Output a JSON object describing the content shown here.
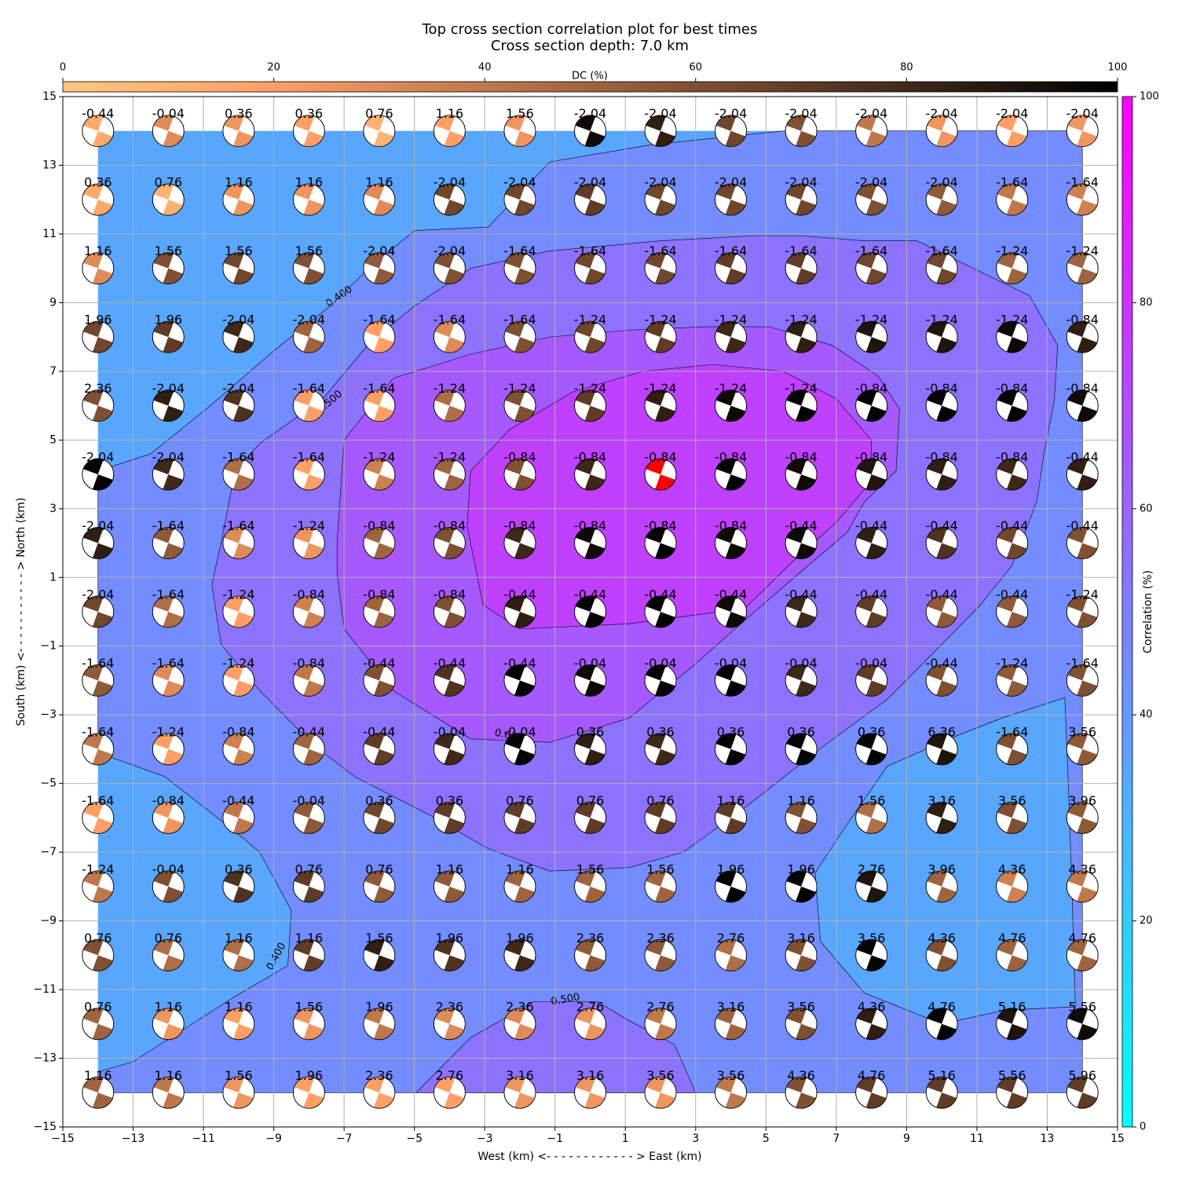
{
  "chart_data": {
    "type": "beachball_grid",
    "title": "Top cross section correlation plot for best times",
    "subtitle": "Cross section depth: 7.0 km",
    "xlabel": "West (km) <- - - - - - - - - - - - > East (km)",
    "ylabel": "South (km) <- - - - - - - - - - - > North (km)",
    "xlim": [
      -15,
      15
    ],
    "ylim": [
      -15,
      15
    ],
    "xticks": [
      {
        "value": -15,
        "label": "−15"
      },
      {
        "value": -13,
        "label": "−13"
      },
      {
        "value": -11,
        "label": "−11"
      },
      {
        "value": -9,
        "label": "−9"
      },
      {
        "value": -7,
        "label": "−7"
      },
      {
        "value": -5,
        "label": "−5"
      },
      {
        "value": -3,
        "label": "−3"
      },
      {
        "value": -1,
        "label": "−1"
      },
      1,
      3,
      5,
      7,
      9,
      11,
      13,
      15
    ],
    "yticks": [
      {
        "value": -15,
        "label": "−15"
      },
      {
        "value": -13,
        "label": "−13"
      },
      {
        "value": -11,
        "label": "−11"
      },
      {
        "value": -9,
        "label": "−9"
      },
      {
        "value": -7,
        "label": "−7"
      },
      {
        "value": -5,
        "label": "−5"
      },
      {
        "value": -3,
        "label": "−3"
      },
      {
        "value": -1,
        "label": "−1"
      },
      1,
      3,
      5,
      7,
      9,
      11,
      13,
      15
    ],
    "grid": true,
    "x": [
      -14,
      -12,
      -10,
      -8,
      -6,
      -4,
      -2,
      0,
      2,
      4,
      6,
      8,
      10,
      12,
      14
    ],
    "y": [
      14,
      12,
      10,
      8,
      6,
      4,
      2,
      0,
      -2,
      -4,
      -6,
      -8,
      -10,
      -12,
      -14
    ],
    "time_labels": [
      [
        -0.44,
        -0.04,
        0.36,
        0.36,
        0.76,
        1.16,
        1.56,
        -2.04,
        -2.04,
        -2.04,
        -2.04,
        -2.04,
        -2.04,
        -2.04,
        -2.04
      ],
      [
        0.36,
        0.76,
        1.16,
        1.16,
        1.16,
        -2.04,
        -2.04,
        -2.04,
        -2.04,
        -2.04,
        -2.04,
        -2.04,
        -2.04,
        -1.64,
        -1.64
      ],
      [
        1.16,
        1.56,
        1.56,
        1.56,
        -2.04,
        -2.04,
        -1.64,
        -1.64,
        -1.64,
        -1.64,
        -1.64,
        -1.64,
        -1.64,
        -1.24,
        -1.24
      ],
      [
        1.96,
        1.96,
        -2.04,
        -2.04,
        -1.64,
        -1.64,
        -1.64,
        -1.24,
        -1.24,
        -1.24,
        -1.24,
        -1.24,
        -1.24,
        -1.24,
        -0.84
      ],
      [
        2.36,
        -2.04,
        -2.04,
        -1.64,
        -1.64,
        -1.24,
        -1.24,
        -1.24,
        -1.24,
        -1.24,
        -1.24,
        -0.84,
        -0.84,
        -0.84,
        -0.84
      ],
      [
        -2.04,
        -2.04,
        -1.64,
        -1.64,
        -1.24,
        -1.24,
        -0.84,
        -0.84,
        -0.84,
        -0.84,
        -0.84,
        -0.84,
        -0.84,
        -0.84,
        -0.44
      ],
      [
        -2.04,
        -1.64,
        -1.64,
        -1.24,
        -0.84,
        -0.84,
        -0.84,
        -0.84,
        -0.84,
        -0.84,
        -0.44,
        -0.44,
        -0.44,
        -0.44,
        -0.44
      ],
      [
        -2.04,
        -1.64,
        -1.24,
        -0.84,
        -0.84,
        -0.84,
        -0.44,
        -0.44,
        -0.44,
        -0.44,
        -0.44,
        -0.44,
        -0.44,
        -0.44,
        -1.24
      ],
      [
        -1.64,
        -1.64,
        -1.24,
        -0.84,
        -0.44,
        -0.44,
        -0.44,
        -0.04,
        -0.04,
        -0.04,
        -0.04,
        -0.04,
        -0.44,
        -1.24,
        -1.64
      ],
      [
        -1.64,
        -1.24,
        -0.84,
        -0.44,
        -0.44,
        -0.04,
        -0.04,
        0.36,
        0.36,
        0.36,
        0.36,
        0.36,
        6.36,
        -1.64,
        3.56
      ],
      [
        -1.64,
        -0.84,
        -0.44,
        -0.04,
        0.36,
        0.36,
        0.76,
        0.76,
        0.76,
        1.16,
        1.16,
        1.56,
        3.16,
        3.56,
        3.96
      ],
      [
        -1.24,
        -0.04,
        0.36,
        0.76,
        0.76,
        1.16,
        1.16,
        1.56,
        1.56,
        1.96,
        1.96,
        2.76,
        3.96,
        4.36,
        4.36
      ],
      [
        0.76,
        0.76,
        1.16,
        1.16,
        1.56,
        1.96,
        1.96,
        2.36,
        2.36,
        2.76,
        3.16,
        3.56,
        4.36,
        4.76,
        4.76
      ],
      [
        0.76,
        1.16,
        1.16,
        1.56,
        1.96,
        2.36,
        2.36,
        2.76,
        2.76,
        3.16,
        3.56,
        4.36,
        4.76,
        5.16,
        5.56
      ],
      [
        1.16,
        1.16,
        1.56,
        1.96,
        2.36,
        2.76,
        3.16,
        3.16,
        3.56,
        3.56,
        4.36,
        4.76,
        5.16,
        5.56,
        5.96
      ]
    ],
    "dc": [
      [
        15,
        30,
        25,
        20,
        10,
        20,
        25,
        95,
        85,
        65,
        60,
        40,
        25,
        20,
        25
      ],
      [
        15,
        10,
        25,
        25,
        30,
        65,
        65,
        70,
        65,
        65,
        65,
        60,
        55,
        40,
        35
      ],
      [
        30,
        60,
        65,
        60,
        55,
        60,
        60,
        65,
        65,
        70,
        70,
        65,
        65,
        50,
        50
      ],
      [
        65,
        70,
        80,
        50,
        20,
        30,
        60,
        65,
        70,
        80,
        85,
        90,
        90,
        95,
        85
      ],
      [
        60,
        85,
        75,
        20,
        20,
        45,
        60,
        70,
        85,
        95,
        98,
        98,
        98,
        98,
        95
      ],
      [
        98,
        80,
        45,
        20,
        35,
        50,
        60,
        80,
        null,
        98,
        95,
        90,
        85,
        80,
        85
      ],
      [
        85,
        55,
        30,
        25,
        50,
        60,
        80,
        95,
        98,
        95,
        95,
        85,
        75,
        65,
        60
      ],
      [
        65,
        45,
        20,
        35,
        50,
        60,
        85,
        98,
        98,
        95,
        80,
        70,
        55,
        55,
        60
      ],
      [
        55,
        30,
        20,
        40,
        60,
        75,
        98,
        95,
        98,
        98,
        80,
        70,
        60,
        55,
        60
      ],
      [
        40,
        20,
        35,
        50,
        70,
        80,
        98,
        85,
        80,
        98,
        98,
        98,
        90,
        60,
        55
      ],
      [
        20,
        25,
        40,
        55,
        65,
        70,
        70,
        70,
        70,
        70,
        60,
        45,
        85,
        60,
        55
      ],
      [
        40,
        60,
        75,
        70,
        55,
        55,
        50,
        50,
        50,
        98,
        98,
        90,
        50,
        35,
        40
      ],
      [
        60,
        45,
        45,
        70,
        85,
        75,
        80,
        55,
        55,
        45,
        60,
        98,
        60,
        50,
        50
      ],
      [
        50,
        25,
        20,
        25,
        40,
        30,
        30,
        25,
        40,
        50,
        60,
        85,
        98,
        90,
        95
      ],
      [
        50,
        40,
        25,
        20,
        20,
        20,
        25,
        25,
        25,
        40,
        60,
        70,
        70,
        70,
        70
      ]
    ],
    "highlight": {
      "x": 2,
      "y": 4,
      "color": "#ff0000"
    },
    "dc_colorbar": {
      "label": "DC (%)",
      "lim": [
        0,
        100
      ],
      "ticks": [
        0,
        20,
        40,
        60,
        80,
        100
      ],
      "colormap": "copper_r"
    },
    "corr_colorbar": {
      "label": "Correlation (%)",
      "lim": [
        0,
        100
      ],
      "ticks": [
        0,
        20,
        40,
        60,
        80,
        100
      ],
      "colormap": "cool"
    },
    "contours": [
      {
        "level": 0.4,
        "side": "above",
        "labels": [
          "0.400",
          "0.400"
        ],
        "x": [
          -14,
          -12.5,
          -10.76,
          -9,
          -7.4,
          -6.4,
          -5,
          -2.9,
          -1.15,
          1.75,
          5.5,
          14,
          14,
          -14,
          -14,
          -13,
          -10.1,
          -8.6,
          -8.5,
          -9.4,
          -10.1,
          -12.1,
          -14
        ],
        "y": [
          4.1,
          4.6,
          6.04,
          7.6,
          8.9,
          9.9,
          11.1,
          11.2,
          13.1,
          13.6,
          14,
          14,
          -14,
          -14,
          -13.4,
          -13.1,
          -11.2,
          -10.3,
          -8.7,
          -7,
          -6.4,
          -4.8,
          -4.1
        ]
      },
      {
        "level": 0.4,
        "side": "below",
        "x": [
          13.5,
          11.7,
          10.2,
          8.45,
          7.3,
          6.4,
          6.55,
          7.8,
          10,
          11.8,
          13.8,
          13.7,
          13.6
        ],
        "y": [
          -2.5,
          -3.1,
          -3.7,
          -4.5,
          -6.2,
          -7.6,
          -9.6,
          -11.1,
          -12,
          -11.6,
          -11.5,
          -8,
          -5
        ]
      },
      {
        "level": 0.5,
        "side": "above",
        "labels": [
          "0.500"
        ],
        "x": [
          -10.76,
          -10.5,
          -10.1,
          -9.4,
          -7.6,
          -6.3,
          -5,
          -3.4,
          -1.2,
          2,
          4.65,
          6,
          7.8,
          9.3,
          10.9,
          12.5,
          13.3,
          13.2,
          12.9,
          12.7,
          12,
          11.1,
          10,
          8.45,
          6.65,
          4.4,
          2.65,
          1.1,
          -1.15,
          -2.9,
          -4.5,
          -6.7,
          -7.85,
          -9.4,
          -10.5
        ],
        "y": [
          0.8,
          2,
          4.1,
          4.9,
          6.2,
          7.8,
          8.9,
          10,
          10.5,
          10.8,
          10.95,
          10.95,
          10.8,
          10.8,
          10,
          9.2,
          7.75,
          6.15,
          4.55,
          3.2,
          1.35,
          0.2,
          -0.95,
          -2.55,
          -3.9,
          -5.7,
          -7,
          -7.45,
          -7.55,
          -6.9,
          -5.95,
          -4.8,
          -3.9,
          -2.3,
          -0.95
        ]
      },
      {
        "level": 0.5,
        "side": "above",
        "labels": [
          "0.500"
        ],
        "x": [
          -4.95,
          -3.4,
          -1.6,
          0.2,
          1.1,
          2.4,
          3
        ],
        "y": [
          -14,
          -12.4,
          -11.35,
          -11.35,
          -11.9,
          -12.6,
          -14
        ]
      },
      {
        "level": 0.6,
        "side": "above",
        "labels": [
          "0.600"
        ],
        "x": [
          -7.2,
          -7,
          -5.6,
          -3.4,
          -1.15,
          1.1,
          3.3,
          5.1,
          6.9,
          8.2,
          8.8,
          8.7,
          7.8,
          7.3,
          6.2,
          4.4,
          2.9,
          1.1,
          -1.15,
          -3.4,
          -5.6,
          -7,
          -7.2
        ],
        "y": [
          2.03,
          5,
          6.8,
          7.5,
          8,
          8.2,
          8.3,
          8.3,
          7.75,
          6.85,
          5.9,
          4.1,
          3.2,
          2.3,
          1.35,
          -0.25,
          -1.6,
          -3.1,
          -3.8,
          -3.7,
          -2.3,
          -0.5,
          1.1
        ]
      },
      {
        "level": 0.7,
        "side": "above",
        "x": [
          -3.5,
          -3.4,
          -2.3,
          -0.5,
          1.5,
          3.5,
          5.5,
          7,
          8,
          8,
          7,
          5.8,
          4.4,
          1.1,
          -2,
          -3.05
        ],
        "y": [
          2.5,
          4.1,
          5.3,
          6.4,
          7,
          7.2,
          7,
          6.2,
          5,
          3.8,
          2.6,
          1.5,
          0.1,
          -0.35,
          -0.5,
          0.2
        ]
      }
    ]
  }
}
